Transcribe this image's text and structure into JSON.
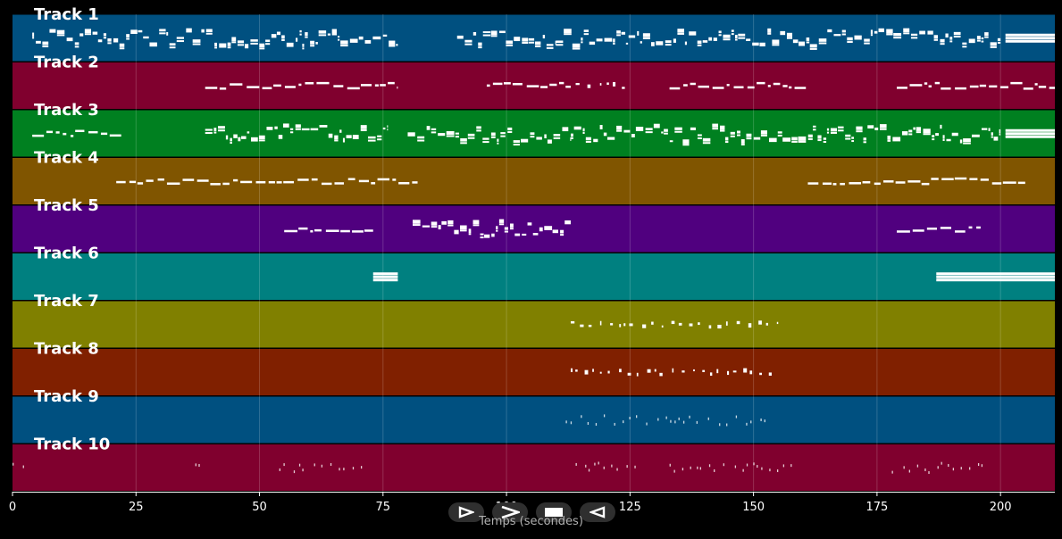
{
  "chart_data": {
    "type": "piano-roll",
    "xlabel": "Temps (secondes)",
    "xlim": [
      0,
      211
    ],
    "xticks": [
      0,
      25,
      50,
      75,
      100,
      125,
      150,
      175,
      200
    ],
    "grid": true,
    "tracks": [
      {
        "name": "Track 1",
        "color": "#005080",
        "segments": [
          [
            4,
            78,
            "dense"
          ],
          [
            90,
            110,
            "dense"
          ],
          [
            110,
            158,
            "dense"
          ],
          [
            158,
            200,
            "dense"
          ],
          [
            201,
            211,
            "block"
          ]
        ]
      },
      {
        "name": "Track 2",
        "color": "#80002e",
        "segments": [
          [
            39,
            78,
            "line"
          ],
          [
            96,
            113,
            "line"
          ],
          [
            114,
            124,
            "sparse"
          ],
          [
            133,
            161,
            "line"
          ],
          [
            179,
            211,
            "line"
          ]
        ]
      },
      {
        "name": "Track 3",
        "color": "#008020",
        "segments": [
          [
            4,
            22,
            "line"
          ],
          [
            39,
            76,
            "dense"
          ],
          [
            80,
            113,
            "dense"
          ],
          [
            113,
            162,
            "dense"
          ],
          [
            162,
            200,
            "dense"
          ],
          [
            201,
            211,
            "block"
          ]
        ]
      },
      {
        "name": "Track 4",
        "color": "#805500",
        "segments": [
          [
            21,
            82,
            "line"
          ],
          [
            161,
            205,
            "line"
          ]
        ]
      },
      {
        "name": "Track 5",
        "color": "#50007f",
        "segments": [
          [
            55,
            73,
            "line"
          ],
          [
            81,
            113,
            "dense"
          ],
          [
            179,
            196,
            "line"
          ]
        ]
      },
      {
        "name": "Track 6",
        "color": "#008080",
        "segments": [
          [
            73,
            78,
            "block"
          ],
          [
            187,
            211,
            "block"
          ]
        ]
      },
      {
        "name": "Track 7",
        "color": "#808000",
        "segments": [
          [
            113,
            155,
            "sparse"
          ]
        ]
      },
      {
        "name": "Track 8",
        "color": "#802000",
        "segments": [
          [
            113,
            155,
            "sparse"
          ]
        ]
      },
      {
        "name": "Track 9",
        "color": "#005080",
        "segments": [
          [
            112,
            153,
            "ticks"
          ]
        ]
      },
      {
        "name": "Track 10",
        "color": "#80002e",
        "segments": [
          [
            0,
            3,
            "ticks"
          ],
          [
            37,
            39,
            "ticks"
          ],
          [
            54,
            71,
            "ticks"
          ],
          [
            114,
            127,
            "ticks"
          ],
          [
            133,
            158,
            "ticks"
          ],
          [
            178,
            197,
            "ticks"
          ]
        ]
      }
    ]
  },
  "controls": [
    "play-forward",
    "fast-forward",
    "stop",
    "rewind"
  ],
  "icons": {
    "fg": "#ffffff"
  }
}
